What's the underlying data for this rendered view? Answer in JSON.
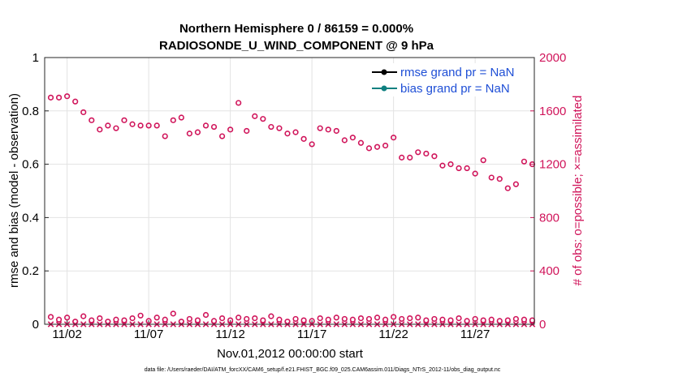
{
  "chart_data": {
    "type": "scatter",
    "title_line1": "Northern Hemisphere 0 / 86159 = 0.000%",
    "title_line2": "RADIOSONDE_U_WIND_COMPONENT @ 9 hPa",
    "ylabel_left": "rmse and bias (model - observation)",
    "ylabel_right": "# of obs: o=possible; ×=assimilated",
    "xlabel": "Nov.01,2012 00:00:00 start",
    "footer": "data file: /Users/raeder/DAI/ATM_forcXX/CAM6_setup/f.e21.FHIST_BGC.f09_025.CAM6assim.011/Diags_NTrS_2012-11/obs_diag_output.nc",
    "left_ylim": [
      0,
      1
    ],
    "left_yticks": [
      "0",
      "0.2",
      "0.4",
      "0.6",
      "0.8",
      "1"
    ],
    "left_ytick_values": [
      0,
      0.2,
      0.4,
      0.6,
      0.8,
      1
    ],
    "right_ylim": [
      0,
      2000
    ],
    "right_yticks": [
      "0",
      "400",
      "800",
      "1200",
      "1600",
      "2000"
    ],
    "right_ytick_values": [
      0,
      400,
      800,
      1200,
      1600,
      2000
    ],
    "xlim": [
      0.625,
      30.625
    ],
    "xticks": [
      "11/02",
      "11/07",
      "11/12",
      "11/17",
      "11/22",
      "11/27"
    ],
    "xtick_values": [
      2,
      7,
      12,
      17,
      22,
      27
    ],
    "legend": [
      {
        "label": "rmse grand pr = NaN",
        "color": "#000000"
      },
      {
        "label": "bias grand pr = NaN",
        "color": "#0f8080"
      }
    ],
    "legend_position": "top-right",
    "colors": {
      "obs": "#d0145a",
      "axis_right": "#d0145a",
      "grid": "#e3e3e3",
      "legend_text": "#1f4fd6"
    },
    "series": [
      {
        "name": "possible (00Z)",
        "x": [
          1,
          2,
          3,
          4,
          5,
          6,
          7,
          8,
          9,
          10,
          11,
          12,
          13,
          14,
          15,
          16,
          17,
          18,
          19,
          20,
          21,
          22,
          23,
          24,
          25,
          26,
          27,
          28,
          29,
          30
        ],
        "values": [
          1700,
          1710,
          1590,
          1460,
          1470,
          1500,
          1490,
          1410,
          1550,
          1440,
          1480,
          1460,
          1450,
          1540,
          1470,
          1440,
          1350,
          1460,
          1380,
          1360,
          1330,
          1400,
          1250,
          1280,
          1190,
          1170,
          1130,
          1100,
          1020,
          1220
        ]
      },
      {
        "name": "possible (12Z)",
        "x": [
          1.5,
          2.5,
          3.5,
          4.5,
          5.5,
          6.5,
          7.5,
          8.5,
          9.5,
          10.5,
          11.5,
          12.5,
          13.5,
          14.5,
          15.5,
          16.5,
          17.5,
          18.5,
          19.5,
          20.5,
          21.5,
          22.5,
          23.5,
          24.5,
          25.5,
          26.5,
          27.5,
          28.5,
          29.5,
          30.5
        ],
        "values": [
          1700,
          1670,
          1530,
          1490,
          1530,
          1490,
          1490,
          1530,
          1430,
          1490,
          1410,
          1660,
          1560,
          1480,
          1430,
          1390,
          1470,
          1450,
          1400,
          1320,
          1340,
          1250,
          1290,
          1260,
          1200,
          1170,
          1230,
          1090,
          1050,
          1200
        ]
      },
      {
        "name": "assimilated",
        "x": [
          1,
          1.5,
          2,
          2.5,
          3,
          3.5,
          4,
          4.5,
          5,
          5.5,
          6,
          6.5,
          7,
          7.5,
          8,
          8.5,
          9,
          9.5,
          10,
          10.5,
          11,
          11.5,
          12,
          12.5,
          13,
          13.5,
          14,
          14.5,
          15,
          15.5,
          16,
          16.5,
          17,
          17.5,
          18,
          18.5,
          19,
          19.5,
          20,
          20.5,
          21,
          21.5,
          22,
          22.5,
          23,
          23.5,
          24,
          24.5,
          25,
          25.5,
          26,
          26.5,
          27,
          27.5,
          28,
          28.5,
          29,
          29.5,
          30,
          30.5
        ],
        "values": [
          0,
          0,
          0,
          0,
          0,
          0,
          0,
          0,
          0,
          0,
          0,
          0,
          0,
          0,
          0,
          0,
          0,
          0,
          0,
          0,
          0,
          0,
          0,
          0,
          0,
          0,
          0,
          0,
          0,
          0,
          0,
          0,
          0,
          0,
          0,
          0,
          0,
          0,
          0,
          0,
          0,
          0,
          0,
          0,
          0,
          0,
          0,
          0,
          0,
          0,
          0,
          0,
          0,
          0,
          0,
          0,
          0,
          0,
          0,
          0
        ]
      },
      {
        "name": "possible (low)",
        "x": [
          1,
          1.5,
          2,
          2.5,
          3,
          3.5,
          4,
          4.5,
          5,
          5.5,
          6,
          6.5,
          7,
          7.5,
          8,
          8.5,
          9,
          9.5,
          10,
          10.5,
          11,
          11.5,
          12,
          12.5,
          13,
          13.5,
          14,
          14.5,
          15,
          15.5,
          16,
          16.5,
          17,
          17.5,
          18,
          18.5,
          19,
          19.5,
          20,
          20.5,
          21,
          21.5,
          22,
          22.5,
          23,
          23.5,
          24,
          24.5,
          25,
          25.5,
          26,
          26.5,
          27,
          27.5,
          28,
          28.5,
          29,
          29.5,
          30,
          30.5
        ],
        "values": [
          55,
          35,
          50,
          20,
          60,
          30,
          45,
          20,
          35,
          30,
          45,
          65,
          25,
          50,
          35,
          80,
          20,
          40,
          30,
          70,
          25,
          45,
          30,
          50,
          40,
          45,
          30,
          60,
          35,
          20,
          40,
          30,
          25,
          45,
          35,
          50,
          40,
          35,
          45,
          40,
          50,
          35,
          55,
          40,
          45,
          50,
          30,
          40,
          35,
          30,
          45,
          25,
          40,
          30,
          35,
          25,
          30,
          40,
          35,
          30
        ]
      }
    ]
  }
}
